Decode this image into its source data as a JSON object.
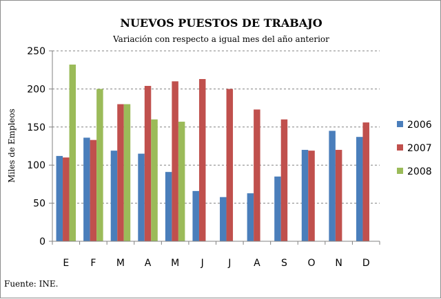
{
  "chart_data": {
    "type": "bar",
    "title": "NUEVOS PUESTOS DE TRABAJO",
    "subtitle": "Variación con respecto a igual mes del año anterior",
    "ylabel": "Miles de Empleos",
    "xlabel": "",
    "ylim": [
      0,
      250
    ],
    "yticks": [
      0,
      50,
      100,
      150,
      200,
      250
    ],
    "grid": "horizontal-dashed",
    "legend_position": "right",
    "categories": [
      "E",
      "F",
      "M",
      "A",
      "M",
      "J",
      "J",
      "A",
      "S",
      "O",
      "N",
      "D"
    ],
    "series": [
      {
        "name": "2006",
        "color": "#4a7ebb",
        "values": [
          112,
          136,
          119,
          115,
          91,
          66,
          58,
          63,
          85,
          120,
          145,
          137
        ]
      },
      {
        "name": "2007",
        "color": "#c0504d",
        "values": [
          110,
          133,
          180,
          204,
          210,
          213,
          200,
          173,
          160,
          119,
          120,
          156
        ]
      },
      {
        "name": "2008",
        "color": "#9bbb59",
        "values": [
          232,
          200,
          180,
          160,
          157,
          null,
          null,
          null,
          null,
          null,
          null,
          null
        ]
      }
    ],
    "source": "Fuente: INE."
  }
}
